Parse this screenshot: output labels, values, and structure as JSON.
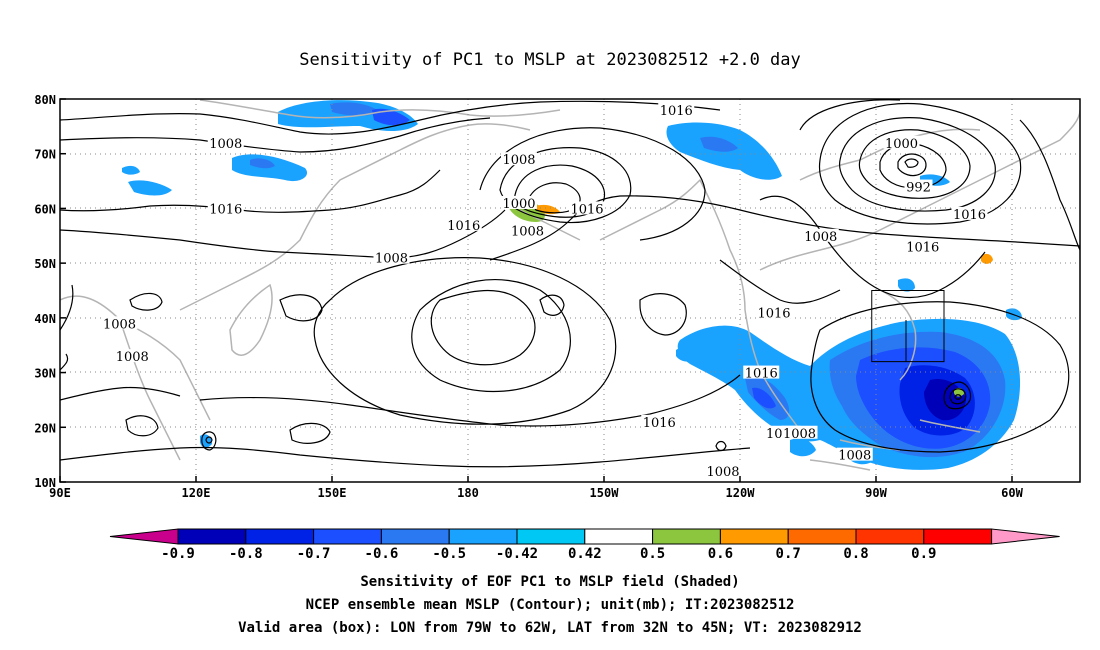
{
  "title": "Sensitivity of PC1 to MSLP at 2023082512 +2.0 day",
  "axes": {
    "x_ticks": [
      "90E",
      "120E",
      "150E",
      "180",
      "150W",
      "120W",
      "90W",
      "60W"
    ],
    "y_ticks": [
      "10N",
      "20N",
      "30N",
      "40N",
      "50N",
      "60N",
      "70N",
      "80N"
    ]
  },
  "contour_labels": [
    {
      "text": "1008",
      "lon": 129,
      "lat": 72
    },
    {
      "text": "1016",
      "lon": 129,
      "lat": 60
    },
    {
      "text": "1008",
      "lon": 168,
      "lat": 51
    },
    {
      "text": "1016",
      "lon": 185,
      "lat": 57
    },
    {
      "text": "1000",
      "lon": 198,
      "lat": 61
    },
    {
      "text": "1008",
      "lon": 200,
      "lat": 56
    },
    {
      "text": "1016",
      "lon": 214,
      "lat": 60
    },
    {
      "text": "1008",
      "lon": 198,
      "lat": 69
    },
    {
      "text": "1016",
      "lon": 235,
      "lat": 78
    },
    {
      "text": "1000",
      "lon": 288,
      "lat": 72
    },
    {
      "text": "992",
      "lon": 292,
      "lat": 64
    },
    {
      "text": "1016",
      "lon": 304,
      "lat": 59
    },
    {
      "text": "1008",
      "lon": 269,
      "lat": 55
    },
    {
      "text": "1016",
      "lon": 293,
      "lat": 53
    },
    {
      "text": "1016",
      "lon": 258,
      "lat": 41
    },
    {
      "text": "1008",
      "lon": 104,
      "lat": 39
    },
    {
      "text": "1008",
      "lon": 107,
      "lat": 33
    },
    {
      "text": "1016",
      "lon": 255,
      "lat": 30
    },
    {
      "text": "1016",
      "lon": 231,
      "lat": 21
    },
    {
      "text": "1016",
      "lon": 260,
      "lat": 19
    },
    {
      "text": "1008",
      "lon": 264,
      "lat": 19
    },
    {
      "text": "1008",
      "lon": 277,
      "lat": 15
    },
    {
      "text": "1008",
      "lon": 246,
      "lat": 12
    }
  ],
  "colorbar": {
    "labels": [
      "-0.9",
      "-0.8",
      "-0.7",
      "-0.6",
      "-0.5",
      "-0.42",
      "0.42",
      "0.5",
      "0.6",
      "0.7",
      "0.8",
      "0.9"
    ],
    "colors": [
      "#0000b8",
      "#0022e6",
      "#1c4fff",
      "#2b79f2",
      "#1aa2ff",
      "#00c8f5",
      "#ffffff",
      "#8cc63f",
      "#ff9a00",
      "#ff6a00",
      "#ff3400",
      "#ff0000"
    ],
    "low_end_color": "#c8008c",
    "high_end_color": "#ff9ac8"
  },
  "valid_box": {
    "lon_min": 281,
    "lon_max": 298,
    "lat_min": 32,
    "lat_max": 45
  },
  "captions": {
    "line1": "Sensitivity of EOF PC1 to MSLP field (Shaded)",
    "line2": "NCEP ensemble mean MSLP (Contour); unit(mb); IT:2023082512",
    "line3": "Valid area (box): LON from 79W to 62W, LAT from 32N to 45N; VT: 2023082912"
  }
}
